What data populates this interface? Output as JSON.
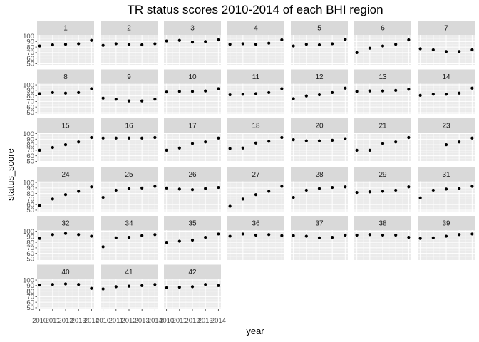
{
  "chart_data": {
    "type": "scatter",
    "title": "TR status scores 2010-2014 of each BHI region",
    "xlabel": "year",
    "ylabel": "status_score",
    "x": [
      2010,
      2011,
      2012,
      2013,
      2014
    ],
    "x_tick_labels": [
      "2010",
      "2011",
      "2012",
      "2013",
      "2014"
    ],
    "y_ticks": [
      50,
      60,
      70,
      80,
      90,
      100
    ],
    "ylim": [
      48,
      102
    ],
    "xlim": [
      2009.8,
      2014.2
    ],
    "grid": true,
    "facet_columns": 7,
    "colors": {
      "panel_background": "#ebebeb",
      "grid_major": "#ffffff",
      "grid_minor": "#f5f5f5",
      "strip_background": "#d9d9d9",
      "points": "#000000"
    },
    "panels": [
      {
        "label": "1",
        "values": [
          82,
          84,
          85,
          86,
          92
        ]
      },
      {
        "label": "2",
        "values": [
          83,
          86,
          85,
          84,
          86
        ]
      },
      {
        "label": "3",
        "values": [
          91,
          92,
          89,
          90,
          93
        ]
      },
      {
        "label": "4",
        "values": [
          85,
          86,
          85,
          87,
          93
        ]
      },
      {
        "label": "5",
        "values": [
          82,
          85,
          84,
          86,
          94
        ]
      },
      {
        "label": "6",
        "values": [
          70,
          78,
          82,
          85,
          93
        ]
      },
      {
        "label": "7",
        "values": [
          77,
          75,
          72,
          72,
          75
        ]
      },
      {
        "label": "8",
        "values": [
          84,
          86,
          85,
          86,
          93
        ]
      },
      {
        "label": "9",
        "values": [
          76,
          74,
          71,
          71,
          74
        ]
      },
      {
        "label": "10",
        "values": [
          87,
          88,
          88,
          89,
          93
        ]
      },
      {
        "label": "11",
        "values": [
          82,
          83,
          84,
          86,
          93
        ]
      },
      {
        "label": "12",
        "values": [
          75,
          80,
          82,
          86,
          94
        ]
      },
      {
        "label": "13",
        "values": [
          88,
          89,
          89,
          90,
          92
        ]
      },
      {
        "label": "14",
        "values": [
          81,
          83,
          83,
          85,
          94
        ]
      },
      {
        "label": "15",
        "values": [
          70,
          75,
          80,
          85,
          93
        ]
      },
      {
        "label": "16",
        "values": [
          92,
          92,
          92,
          92,
          93
        ]
      },
      {
        "label": "17",
        "values": [
          70,
          74,
          82,
          85,
          92
        ]
      },
      {
        "label": "18",
        "values": [
          73,
          74,
          83,
          86,
          93
        ]
      },
      {
        "label": "20",
        "values": [
          89,
          87,
          87,
          88,
          91
        ]
      },
      {
        "label": "21",
        "values": [
          70,
          70,
          82,
          85,
          93
        ]
      },
      {
        "label": "23",
        "values": [
          null,
          null,
          80,
          85,
          92
        ]
      },
      {
        "label": "24",
        "values": [
          58,
          70,
          78,
          84,
          92
        ]
      },
      {
        "label": "25",
        "values": [
          73,
          86,
          89,
          90,
          93
        ]
      },
      {
        "label": "26",
        "values": [
          90,
          88,
          87,
          89,
          91
        ]
      },
      {
        "label": "27",
        "values": [
          57,
          70,
          78,
          84,
          93
        ]
      },
      {
        "label": "28",
        "values": [
          73,
          86,
          89,
          91,
          92
        ]
      },
      {
        "label": "29",
        "values": [
          82,
          83,
          84,
          86,
          92
        ]
      },
      {
        "label": "31",
        "values": [
          72,
          86,
          88,
          89,
          93
        ]
      },
      {
        "label": "32",
        "values": [
          87,
          94,
          96,
          94,
          91
        ]
      },
      {
        "label": "34",
        "values": [
          72,
          88,
          89,
          92,
          94
        ]
      },
      {
        "label": "35",
        "values": [
          80,
          82,
          84,
          89,
          95
        ]
      },
      {
        "label": "36",
        "values": [
          91,
          95,
          93,
          94,
          92
        ]
      },
      {
        "label": "37",
        "values": [
          92,
          91,
          88,
          89,
          93
        ]
      },
      {
        "label": "38",
        "values": [
          93,
          94,
          93,
          93,
          89
        ]
      },
      {
        "label": "39",
        "values": [
          87,
          88,
          91,
          94,
          95
        ]
      },
      {
        "label": "40",
        "values": [
          91,
          92,
          93,
          92,
          85
        ]
      },
      {
        "label": "41",
        "values": [
          84,
          88,
          89,
          90,
          92
        ]
      },
      {
        "label": "42",
        "values": [
          86,
          87,
          88,
          92,
          90
        ]
      }
    ]
  }
}
